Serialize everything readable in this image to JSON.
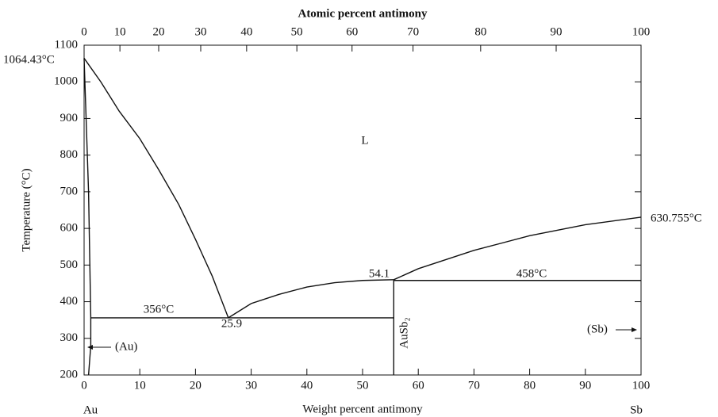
{
  "chart_data": {
    "type": "line",
    "x_label": "Weight percent antimony",
    "x2_label": "Atomic percent antimony",
    "y_label": "Temperature (°C)",
    "xlim": [
      0,
      100
    ],
    "xticks": [
      0,
      10,
      20,
      30,
      40,
      50,
      60,
      70,
      80,
      90,
      100
    ],
    "x2ticks": [
      {
        "value": 0,
        "label": "0"
      },
      {
        "value": 6.43,
        "label": "10"
      },
      {
        "value": 13.39,
        "label": "20"
      },
      {
        "value": 20.94,
        "label": "30"
      },
      {
        "value": 29.18,
        "label": "40"
      },
      {
        "value": 38.2,
        "label": "50"
      },
      {
        "value": 48.11,
        "label": "60"
      },
      {
        "value": 59.06,
        "label": "70"
      },
      {
        "value": 71.2,
        "label": "80"
      },
      {
        "value": 84.76,
        "label": "90"
      },
      {
        "value": 100,
        "label": "100"
      }
    ],
    "ylim": [
      200,
      1100
    ],
    "yticks": [
      200,
      300,
      400,
      500,
      600,
      700,
      800,
      900,
      1000,
      1100
    ],
    "series": [
      {
        "color": "#111111",
        "x": [
          0,
          3,
          6.3,
          10,
          13.4,
          17,
          20,
          23,
          25.9
        ],
        "values": [
          1064.43,
          1000,
          920,
          845,
          760,
          665,
          570,
          470,
          356
        ]
      },
      {
        "color": "#111111",
        "x": [
          25.9,
          30,
          35,
          40,
          45,
          50,
          55.6
        ],
        "values": [
          356,
          395,
          420,
          440,
          452,
          458,
          460
        ]
      },
      {
        "color": "#111111",
        "x": [
          55.6,
          60,
          70,
          80,
          90,
          100
        ],
        "values": [
          460,
          490,
          540,
          580,
          610,
          630.755
        ]
      },
      {
        "color": "#111111",
        "x": [
          0,
          0.8,
          1.2,
          1.2,
          0.8
        ],
        "values": [
          1064.43,
          700,
          356,
          280,
          200
        ]
      },
      {
        "color": "#111111",
        "x": [
          1.2,
          55.6
        ],
        "values": [
          356,
          356
        ]
      },
      {
        "color": "#111111",
        "x": [
          55.6,
          100
        ],
        "values": [
          458,
          458
        ]
      },
      {
        "color": "#111111",
        "x": [
          55.6,
          55.6
        ],
        "values": [
          200,
          460
        ]
      }
    ],
    "annotations": [
      "1064.43°C",
      "L",
      "356°C",
      "25.9",
      "54.1",
      "458°C",
      "630.755°C",
      "(Au)",
      "(Sb)",
      "AuSb₂",
      "Au",
      "Sb"
    ]
  }
}
